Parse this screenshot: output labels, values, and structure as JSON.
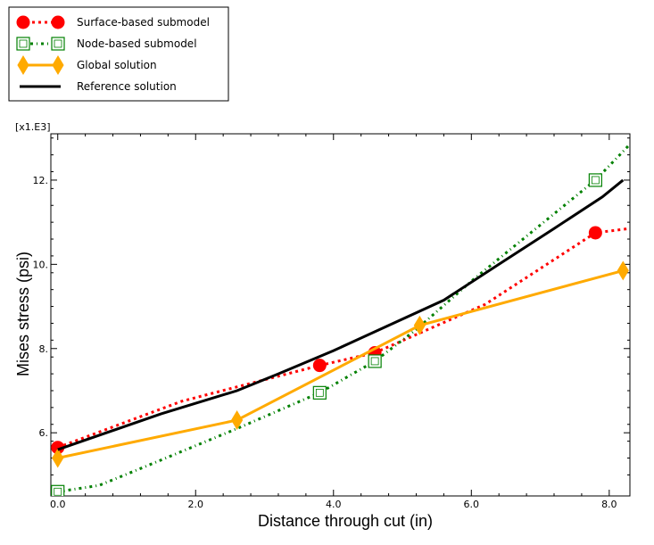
{
  "chart_data": {
    "type": "line",
    "xlabel": "Distance through cut (in)",
    "ylabel": "Mises stress (psi)",
    "y_multiplier_label": "[x1.E3]",
    "xlim": [
      -0.1,
      8.3
    ],
    "ylim": [
      4.5,
      13.1
    ],
    "x_ticks": [
      0.0,
      2.0,
      4.0,
      6.0,
      8.0
    ],
    "x_tick_labels": [
      "0.0",
      "2.0",
      "4.0",
      "6.0",
      "8.0"
    ],
    "y_ticks": [
      6.0,
      8.0,
      10.0,
      12.0
    ],
    "y_tick_labels": [
      "6.",
      "8.",
      "10.",
      "12."
    ],
    "grid": false,
    "legend_position": "top-left, outside plot",
    "series": [
      {
        "name": "Surface-based submodel",
        "color": "#ff0000",
        "line_style": "dotted",
        "marker": "filled-circle",
        "points": [
          [
            0.0,
            5.65
          ],
          [
            1.8,
            6.75
          ],
          [
            3.8,
            7.6
          ],
          [
            4.6,
            7.9
          ],
          [
            6.2,
            9.05
          ],
          [
            7.8,
            10.75
          ],
          [
            8.3,
            10.85
          ]
        ],
        "marker_points": [
          [
            0.0,
            5.65
          ],
          [
            3.8,
            7.6
          ],
          [
            4.6,
            7.9
          ],
          [
            7.8,
            10.75
          ]
        ]
      },
      {
        "name": "Node-based submodel",
        "color": "#008000",
        "line_style": "dash-dot",
        "marker": "open-square",
        "points": [
          [
            0.0,
            4.6
          ],
          [
            0.6,
            4.75
          ],
          [
            1.2,
            5.15
          ],
          [
            2.6,
            6.1
          ],
          [
            3.8,
            6.95
          ],
          [
            4.6,
            7.7
          ],
          [
            5.2,
            8.45
          ],
          [
            6.0,
            9.6
          ],
          [
            7.8,
            12.0
          ],
          [
            8.3,
            12.85
          ]
        ],
        "marker_points": [
          [
            0.0,
            4.6
          ],
          [
            3.8,
            6.95
          ],
          [
            4.6,
            7.7
          ],
          [
            7.8,
            12.0
          ]
        ]
      },
      {
        "name": "Global solution",
        "color": "#ffaa00",
        "line_style": "solid",
        "marker": "diamond",
        "points": [
          [
            0.0,
            5.4
          ],
          [
            2.6,
            6.3
          ],
          [
            5.25,
            8.55
          ],
          [
            8.2,
            9.85
          ]
        ],
        "marker_points": [
          [
            0.0,
            5.4
          ],
          [
            2.6,
            6.3
          ],
          [
            5.25,
            8.55
          ],
          [
            8.2,
            9.85
          ]
        ]
      },
      {
        "name": "Reference solution",
        "color": "#000000",
        "line_style": "solid",
        "marker": "none",
        "points": [
          [
            0.0,
            5.6
          ],
          [
            1.5,
            6.45
          ],
          [
            2.6,
            7.0
          ],
          [
            3.2,
            7.4
          ],
          [
            4.0,
            7.95
          ],
          [
            5.6,
            9.15
          ],
          [
            6.4,
            10.0
          ],
          [
            7.2,
            10.85
          ],
          [
            7.9,
            11.6
          ],
          [
            8.2,
            12.0
          ]
        ],
        "marker_points": []
      }
    ]
  }
}
